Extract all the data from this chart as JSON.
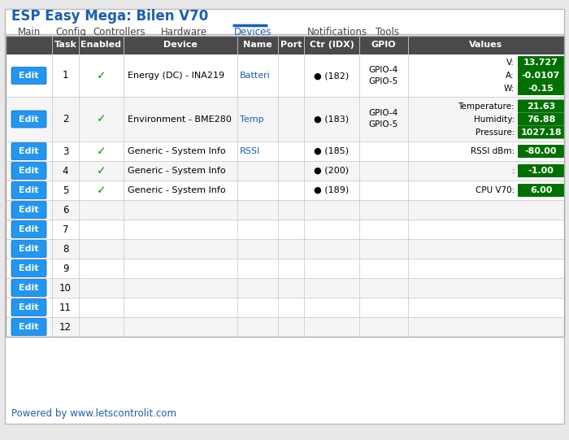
{
  "title": "ESP Easy Mega: Bilen V70",
  "title_color": "#1a5fb4",
  "bg_color": "#e8e8e8",
  "panel_bg": "#ffffff",
  "nav_items": [
    "Main",
    "Config",
    "Controllers",
    "Hardware",
    "Devices",
    "Notifications",
    "Tools"
  ],
  "nav_active": "Devices",
  "nav_active_color": "#1a5fb4",
  "nav_text_color": "#444444",
  "header_bg": "#4a4a4a",
  "header_text": "#ffffff",
  "edit_btn_color": "#2196F3",
  "edit_btn_text": "#ffffff",
  "check_color": "#009900",
  "green_val_bg": "#007000",
  "green_val_text": "#ffffff",
  "row_bg": "#ffffff",
  "row_alt_bg": "#f5f5f5",
  "grid_color": "#cccccc",
  "rows": [
    {
      "task": "1",
      "enabled": true,
      "device": "Energy (DC) - INA219",
      "name": "Batteri",
      "port": "",
      "ctr": "● (182)",
      "gpio": "GPIO-4\nGPIO-5",
      "values": [
        [
          "V:",
          "13.727"
        ],
        [
          "A:",
          "-0.0107"
        ],
        [
          "W:",
          "-0.15"
        ]
      ]
    },
    {
      "task": "2",
      "enabled": true,
      "device": "Environment - BME280",
      "name": "Temp",
      "port": "",
      "ctr": "● (183)",
      "gpio": "GPIO-4\nGPIO-5",
      "values": [
        [
          "Temperature:",
          "21.63"
        ],
        [
          "Humidity:",
          "76.88"
        ],
        [
          "Pressure:",
          "1027.18"
        ]
      ]
    },
    {
      "task": "3",
      "enabled": true,
      "device": "Generic - System Info",
      "name": "RSSI",
      "port": "",
      "ctr": "● (185)",
      "gpio": "",
      "values": [
        [
          "RSSI dBm:",
          "-80.00"
        ]
      ]
    },
    {
      "task": "4",
      "enabled": true,
      "device": "Generic - System Info",
      "name": "",
      "port": "",
      "ctr": "● (200)",
      "gpio": "",
      "values": [
        [
          ":",
          "-1.00"
        ]
      ]
    },
    {
      "task": "5",
      "enabled": true,
      "device": "Generic - System Info",
      "name": "",
      "port": "",
      "ctr": "● (189)",
      "gpio": "",
      "values": [
        [
          "CPU V70:",
          "6.00"
        ]
      ]
    },
    {
      "task": "6",
      "enabled": false,
      "device": "",
      "name": "",
      "port": "",
      "ctr": "",
      "gpio": "",
      "values": []
    },
    {
      "task": "7",
      "enabled": false,
      "device": "",
      "name": "",
      "port": "",
      "ctr": "",
      "gpio": "",
      "values": []
    },
    {
      "task": "8",
      "enabled": false,
      "device": "",
      "name": "",
      "port": "",
      "ctr": "",
      "gpio": "",
      "values": []
    },
    {
      "task": "9",
      "enabled": false,
      "device": "",
      "name": "",
      "port": "",
      "ctr": "",
      "gpio": "",
      "values": []
    },
    {
      "task": "10",
      "enabled": false,
      "device": "",
      "name": "",
      "port": "",
      "ctr": "",
      "gpio": "",
      "values": []
    },
    {
      "task": "11",
      "enabled": false,
      "device": "",
      "name": "",
      "port": "",
      "ctr": "",
      "gpio": "",
      "values": []
    },
    {
      "task": "12",
      "enabled": false,
      "device": "",
      "name": "",
      "port": "",
      "ctr": "",
      "gpio": "",
      "values": []
    }
  ],
  "footer_text": "Powered by www.letscontrolit.com",
  "footer_color": "#1a5fb4"
}
